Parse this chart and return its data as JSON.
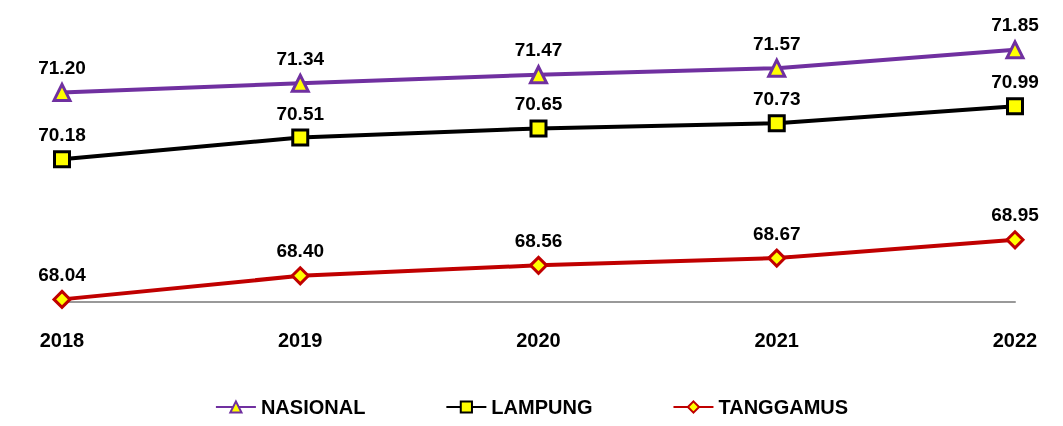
{
  "chart_data": {
    "type": "line",
    "categories": [
      "2018",
      "2019",
      "2020",
      "2021",
      "2022"
    ],
    "series": [
      {
        "name": "NASIONAL",
        "color": "#7030a0",
        "marker": "triangle",
        "values": [
          71.2,
          71.34,
          71.47,
          71.57,
          71.85
        ],
        "value_labels": [
          "71.20",
          "71.34",
          "71.47",
          "71.57",
          "71.85"
        ]
      },
      {
        "name": "LAMPUNG",
        "color": "#000000",
        "marker": "square",
        "values": [
          70.18,
          70.51,
          70.65,
          70.73,
          70.99
        ],
        "value_labels": [
          "70.18",
          "70.51",
          "70.65",
          "70.73",
          "70.99"
        ]
      },
      {
        "name": "TANGGAMUS",
        "color": "#c00000",
        "marker": "diamond",
        "values": [
          68.04,
          68.4,
          68.56,
          68.67,
          68.95
        ],
        "value_labels": [
          "68.04",
          "68.40",
          "68.56",
          "68.67",
          "68.95"
        ]
      }
    ],
    "grid": false,
    "legend": "bottom",
    "tick_labels": "x"
  }
}
